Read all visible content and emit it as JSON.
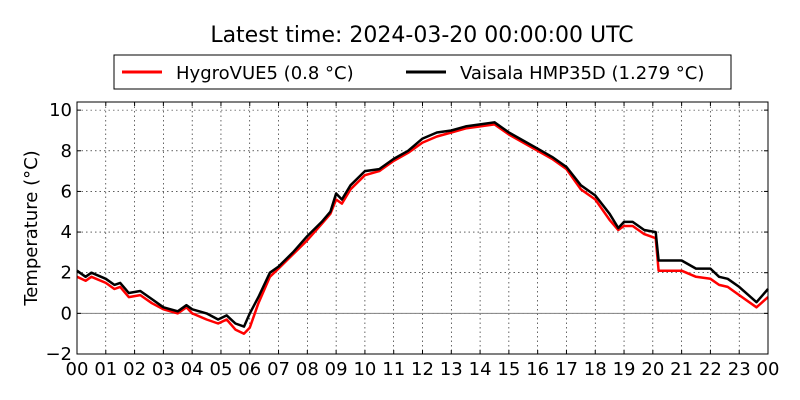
{
  "chart_data": {
    "type": "line",
    "title": "Latest time: 2024-03-20 00:00:00 UTC",
    "xlabel": "",
    "ylabel": "Temperature (°C)",
    "xlim": [
      0,
      24
    ],
    "ylim": [
      -2,
      10.4
    ],
    "xticks": [
      0,
      1,
      2,
      3,
      4,
      5,
      6,
      7,
      8,
      9,
      10,
      11,
      12,
      13,
      14,
      15,
      16,
      17,
      18,
      19,
      20,
      21,
      22,
      23,
      24
    ],
    "xtick_labels": [
      "00",
      "01",
      "02",
      "03",
      "04",
      "05",
      "06",
      "07",
      "08",
      "09",
      "10",
      "11",
      "12",
      "13",
      "14",
      "15",
      "16",
      "17",
      "18",
      "19",
      "20",
      "21",
      "22",
      "23",
      "00"
    ],
    "yticks": [
      -2,
      0,
      2,
      4,
      6,
      8,
      10
    ],
    "ytick_labels": [
      "−2",
      "0",
      "2",
      "4",
      "6",
      "8",
      "10"
    ],
    "grid": true,
    "legend_placement": "top-center",
    "series": [
      {
        "name": "HygroVUE5 (0.8 °C)",
        "color": "#ff0000",
        "x": [
          0,
          0.3,
          0.5,
          1,
          1.3,
          1.5,
          1.8,
          2.2,
          2.6,
          3,
          3.5,
          3.8,
          4,
          4.5,
          4.9,
          5.2,
          5.5,
          5.8,
          6.0,
          6.3,
          6.7,
          7,
          7.5,
          8,
          8.5,
          8.8,
          9,
          9.2,
          9.5,
          10,
          10.5,
          11,
          11.5,
          12,
          12.5,
          13,
          13.5,
          14,
          14.5,
          15,
          15.5,
          16,
          16.5,
          17,
          17.5,
          18,
          18.5,
          18.8,
          19,
          19.3,
          19.7,
          20.1,
          20.2,
          20.5,
          21,
          21.5,
          22,
          22.3,
          22.6,
          23,
          23.6,
          24
        ],
        "y": [
          1.8,
          1.6,
          1.8,
          1.5,
          1.2,
          1.3,
          0.8,
          0.9,
          0.5,
          0.2,
          0.0,
          0.3,
          0.0,
          -0.3,
          -0.5,
          -0.3,
          -0.8,
          -1.0,
          -0.7,
          0.5,
          1.8,
          2.2,
          2.9,
          3.6,
          4.4,
          4.9,
          5.6,
          5.4,
          6.1,
          6.8,
          7.0,
          7.5,
          7.9,
          8.4,
          8.7,
          8.9,
          9.1,
          9.2,
          9.3,
          8.8,
          8.4,
          8.0,
          7.6,
          7.1,
          6.1,
          5.6,
          4.6,
          4.1,
          4.3,
          4.3,
          3.9,
          3.7,
          2.1,
          2.1,
          2.1,
          1.8,
          1.7,
          1.4,
          1.3,
          0.9,
          0.3,
          0.8
        ]
      },
      {
        "name": "Vaisala HMP35D (1.279 °C)",
        "color": "#000000",
        "x": [
          0,
          0.3,
          0.5,
          1,
          1.3,
          1.5,
          1.8,
          2.2,
          2.6,
          3,
          3.5,
          3.8,
          4,
          4.5,
          4.9,
          5.2,
          5.5,
          5.8,
          6.0,
          6.3,
          6.7,
          7,
          7.5,
          8,
          8.5,
          8.8,
          9,
          9.2,
          9.5,
          10,
          10.5,
          11,
          11.5,
          12,
          12.5,
          13,
          13.5,
          14,
          14.5,
          15,
          15.5,
          16,
          16.5,
          17,
          17.5,
          18,
          18.5,
          18.8,
          19,
          19.3,
          19.7,
          20.1,
          20.2,
          20.5,
          21,
          21.5,
          22,
          22.3,
          22.6,
          23,
          23.6,
          24
        ],
        "y": [
          2.1,
          1.8,
          2.0,
          1.7,
          1.4,
          1.5,
          1.0,
          1.1,
          0.7,
          0.3,
          0.1,
          0.4,
          0.2,
          0.0,
          -0.3,
          -0.1,
          -0.5,
          -0.65,
          0.0,
          0.8,
          2.0,
          2.3,
          3.0,
          3.8,
          4.5,
          5.0,
          5.9,
          5.6,
          6.3,
          7.0,
          7.1,
          7.6,
          8.0,
          8.6,
          8.9,
          9.0,
          9.2,
          9.3,
          9.4,
          8.9,
          8.5,
          8.1,
          7.7,
          7.2,
          6.3,
          5.8,
          4.9,
          4.2,
          4.5,
          4.5,
          4.1,
          4.0,
          2.6,
          2.6,
          2.6,
          2.2,
          2.2,
          1.8,
          1.7,
          1.3,
          0.55,
          1.2
        ]
      }
    ]
  }
}
